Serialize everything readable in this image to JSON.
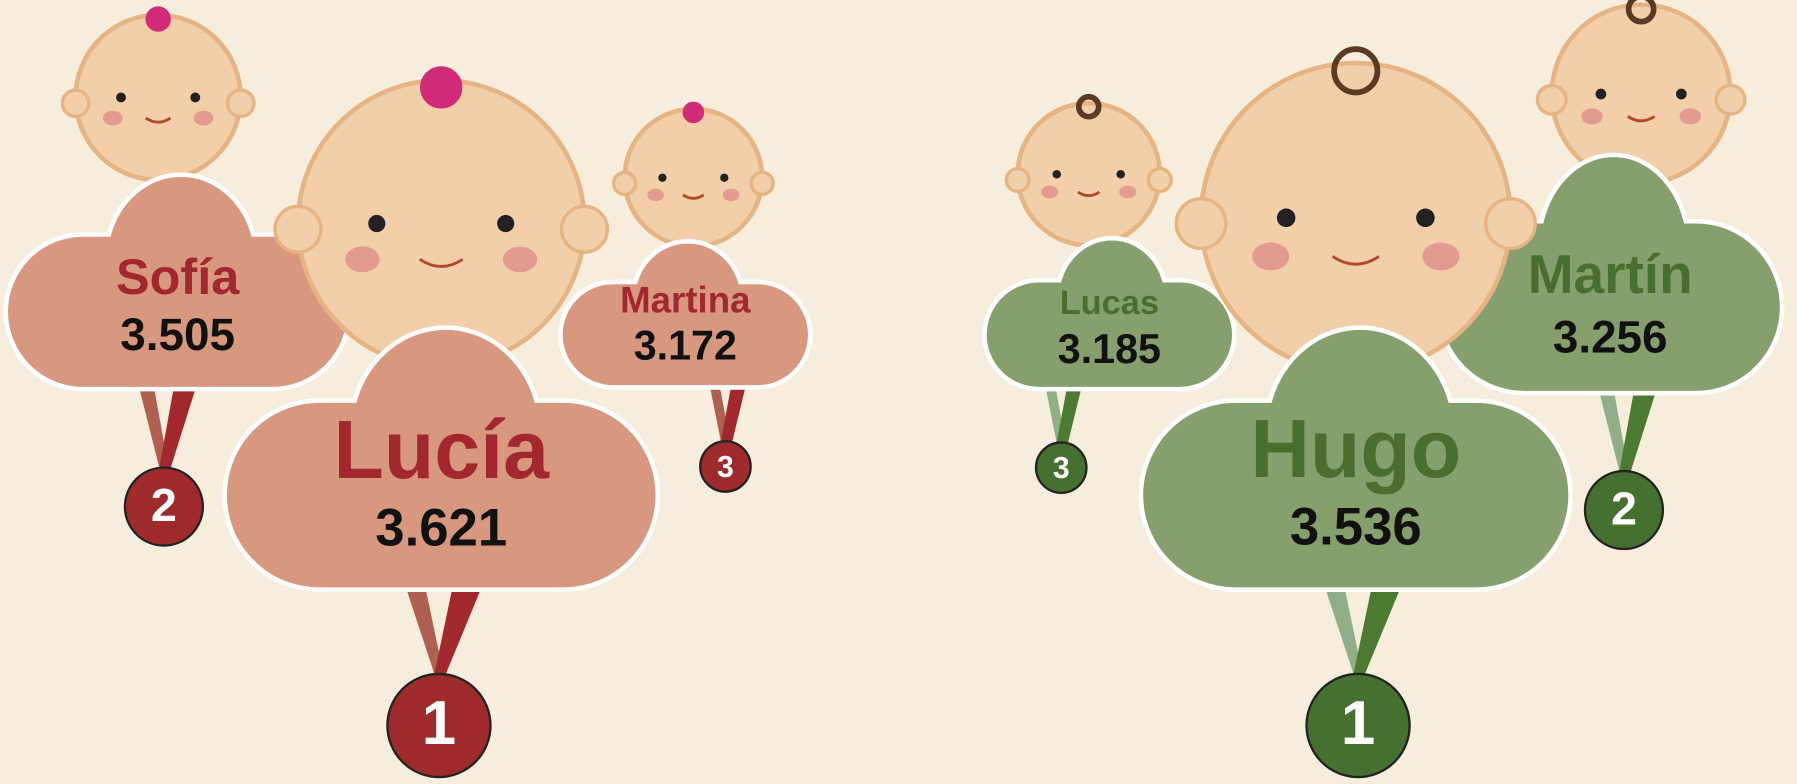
{
  "groups": [
    {
      "entries": [
        {
          "name": "Sofía",
          "count": "3.505",
          "rank": "2"
        },
        {
          "name": "Lucía",
          "count": "3.621",
          "rank": "1"
        },
        {
          "name": "Martina",
          "count": "3.172",
          "rank": "3"
        }
      ]
    },
    {
      "entries": [
        {
          "name": "Lucas",
          "count": "3.185",
          "rank": "3"
        },
        {
          "name": "Hugo",
          "count": "3.536",
          "rank": "1"
        },
        {
          "name": "Martín",
          "count": "3.256",
          "rank": "2"
        }
      ]
    }
  ]
}
